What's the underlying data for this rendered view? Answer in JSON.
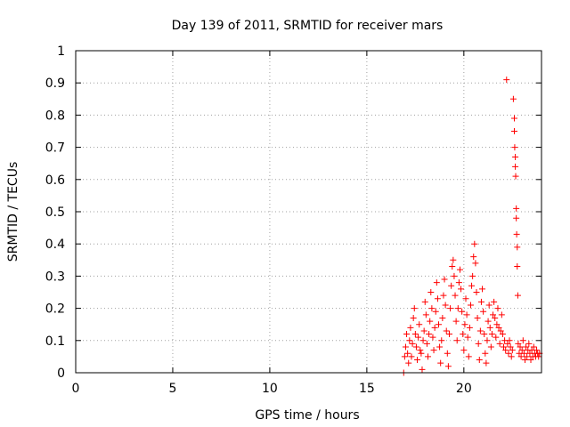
{
  "chart_data": {
    "type": "scatter",
    "title": "Day 139 of 2011, SRMTID for receiver mars",
    "xlabel": "GPS time / hours",
    "ylabel": "SRMTID / TECUs",
    "xlim": [
      0,
      24
    ],
    "ylim": [
      0,
      1
    ],
    "xticks": [
      0,
      5,
      10,
      15,
      20
    ],
    "yticks": [
      0,
      0.1,
      0.2,
      0.3,
      0.4,
      0.5,
      0.6,
      0.7,
      0.8,
      0.9,
      1
    ],
    "xtick_labels": [
      "0",
      "5",
      "10",
      "15",
      "20"
    ],
    "ytick_labels": [
      "0",
      "0.1",
      "0.2",
      "0.3",
      "0.4",
      "0.5",
      "0.6",
      "0.7",
      "0.8",
      "0.9",
      "1"
    ],
    "grid": true,
    "marker": "+",
    "color": "#ff0000",
    "series": [
      {
        "name": "SRMTID",
        "points": [
          [
            16.9,
            0.0
          ],
          [
            16.95,
            0.05
          ],
          [
            17.0,
            0.08
          ],
          [
            17.05,
            0.12
          ],
          [
            17.1,
            0.06
          ],
          [
            17.15,
            0.03
          ],
          [
            17.2,
            0.1
          ],
          [
            17.25,
            0.14
          ],
          [
            17.3,
            0.05
          ],
          [
            17.35,
            0.09
          ],
          [
            17.4,
            0.17
          ],
          [
            17.45,
            0.2
          ],
          [
            17.5,
            0.12
          ],
          [
            17.55,
            0.08
          ],
          [
            17.6,
            0.04
          ],
          [
            17.65,
            0.11
          ],
          [
            17.7,
            0.15
          ],
          [
            17.75,
            0.07
          ],
          [
            17.8,
            0.06
          ],
          [
            17.85,
            0.01
          ],
          [
            17.9,
            0.1
          ],
          [
            17.95,
            0.13
          ],
          [
            18.0,
            0.22
          ],
          [
            18.05,
            0.18
          ],
          [
            18.1,
            0.09
          ],
          [
            18.15,
            0.05
          ],
          [
            18.2,
            0.12
          ],
          [
            18.25,
            0.16
          ],
          [
            18.3,
            0.25
          ],
          [
            18.35,
            0.2
          ],
          [
            18.4,
            0.11
          ],
          [
            18.45,
            0.07
          ],
          [
            18.5,
            0.14
          ],
          [
            18.55,
            0.19
          ],
          [
            18.6,
            0.28
          ],
          [
            18.65,
            0.23
          ],
          [
            18.7,
            0.15
          ],
          [
            18.75,
            0.08
          ],
          [
            18.8,
            0.03
          ],
          [
            18.85,
            0.1
          ],
          [
            18.9,
            0.17
          ],
          [
            18.95,
            0.24
          ],
          [
            19.0,
            0.29
          ],
          [
            19.05,
            0.21
          ],
          [
            19.1,
            0.13
          ],
          [
            19.15,
            0.06
          ],
          [
            19.2,
            0.02
          ],
          [
            19.25,
            0.12
          ],
          [
            19.3,
            0.2
          ],
          [
            19.35,
            0.27
          ],
          [
            19.4,
            0.33
          ],
          [
            19.45,
            0.35
          ],
          [
            19.5,
            0.3
          ],
          [
            19.55,
            0.24
          ],
          [
            19.6,
            0.16
          ],
          [
            19.65,
            0.1
          ],
          [
            19.7,
            0.2
          ],
          [
            19.75,
            0.28
          ],
          [
            19.8,
            0.32
          ],
          [
            19.85,
            0.26
          ],
          [
            19.9,
            0.19
          ],
          [
            19.95,
            0.12
          ],
          [
            20.0,
            0.07
          ],
          [
            20.05,
            0.15
          ],
          [
            20.1,
            0.23
          ],
          [
            20.15,
            0.18
          ],
          [
            20.2,
            0.11
          ],
          [
            20.25,
            0.05
          ],
          [
            20.3,
            0.14
          ],
          [
            20.35,
            0.21
          ],
          [
            20.4,
            0.27
          ],
          [
            20.45,
            0.3
          ],
          [
            20.5,
            0.36
          ],
          [
            20.55,
            0.4
          ],
          [
            20.6,
            0.34
          ],
          [
            20.65,
            0.25
          ],
          [
            20.7,
            0.17
          ],
          [
            20.75,
            0.09
          ],
          [
            20.8,
            0.04
          ],
          [
            20.85,
            0.13
          ],
          [
            20.9,
            0.22
          ],
          [
            20.95,
            0.26
          ],
          [
            21.0,
            0.19
          ],
          [
            21.05,
            0.12
          ],
          [
            21.1,
            0.06
          ],
          [
            21.15,
            0.03
          ],
          [
            21.2,
            0.1
          ],
          [
            21.25,
            0.16
          ],
          [
            21.3,
            0.21
          ],
          [
            21.35,
            0.14
          ],
          [
            21.4,
            0.08
          ],
          [
            21.45,
            0.12
          ],
          [
            21.5,
            0.18
          ],
          [
            21.55,
            0.22
          ],
          [
            21.6,
            0.17
          ],
          [
            21.65,
            0.11
          ],
          [
            21.7,
            0.15
          ],
          [
            21.75,
            0.2
          ],
          [
            21.8,
            0.14
          ],
          [
            21.85,
            0.09
          ],
          [
            21.9,
            0.13
          ],
          [
            21.95,
            0.18
          ],
          [
            22.0,
            0.12
          ],
          [
            22.05,
            0.08
          ],
          [
            22.1,
            0.1
          ],
          [
            22.15,
            0.07
          ],
          [
            22.2,
            0.91
          ],
          [
            22.25,
            0.09
          ],
          [
            22.3,
            0.06
          ],
          [
            22.35,
            0.1
          ],
          [
            22.4,
            0.08
          ],
          [
            22.45,
            0.05
          ],
          [
            22.5,
            0.07
          ],
          [
            22.55,
            0.85
          ],
          [
            22.6,
            0.79
          ],
          [
            22.6,
            0.75
          ],
          [
            22.62,
            0.7
          ],
          [
            22.65,
            0.67
          ],
          [
            22.65,
            0.64
          ],
          [
            22.67,
            0.61
          ],
          [
            22.7,
            0.51
          ],
          [
            22.7,
            0.48
          ],
          [
            22.72,
            0.43
          ],
          [
            22.75,
            0.39
          ],
          [
            22.75,
            0.33
          ],
          [
            22.78,
            0.24
          ],
          [
            22.8,
            0.09
          ],
          [
            22.85,
            0.06
          ],
          [
            22.9,
            0.08
          ],
          [
            22.95,
            0.05
          ],
          [
            23.0,
            0.07
          ],
          [
            23.05,
            0.1
          ],
          [
            23.1,
            0.06
          ],
          [
            23.15,
            0.04
          ],
          [
            23.2,
            0.08
          ],
          [
            23.25,
            0.05
          ],
          [
            23.3,
            0.07
          ],
          [
            23.35,
            0.09
          ],
          [
            23.4,
            0.06
          ],
          [
            23.45,
            0.04
          ],
          [
            23.5,
            0.07
          ],
          [
            23.55,
            0.05
          ],
          [
            23.6,
            0.08
          ],
          [
            23.65,
            0.06
          ],
          [
            23.7,
            0.05
          ],
          [
            23.75,
            0.07
          ],
          [
            23.8,
            0.06
          ],
          [
            23.85,
            0.05
          ],
          [
            23.9,
            0.06
          ]
        ]
      }
    ]
  }
}
